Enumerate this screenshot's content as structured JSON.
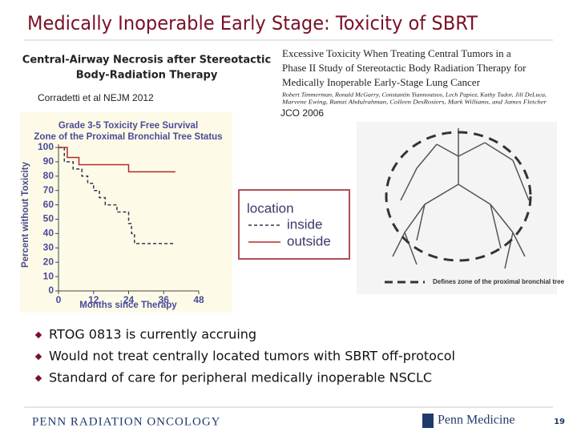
{
  "header": {
    "title": "Medically Inoperable Early Stage: Toxicity of SBRT"
  },
  "left_paper": {
    "title_lines": [
      "Central-Airway Necrosis after Stereotactic",
      "Body-Radiation Therapy"
    ],
    "citation": "Corradetti et al NEJM 2012"
  },
  "right_paper": {
    "title_lines": [
      "Excessive Toxicity When Treating Central Tumors in a",
      "Phase II Study of Stereotactic Body Radiation Therapy for",
      "Medically Inoperable Early-Stage Lung Cancer"
    ],
    "author_lines": [
      "Robert Timmerman, Ronald McGarry, Constantin Yiannoutsos, Lech Papiez, Kathy Tudor, Jill DeLuca,",
      "Marvene Ewing, Ramzi Abdulrahman, Colleen DesRosiers, Mark Williams, and James Fletcher"
    ],
    "citation": "JCO 2006",
    "figure_caption": "Defines zone of the proximal bronchial tree"
  },
  "chart_data": {
    "type": "line",
    "title_lines": [
      "Grade 3-5 Toxicity Free Survival",
      "Zone of the Proximal Bronchial Tree Status"
    ],
    "x_label": "Months since Therapy",
    "y_label": "Percent without Toxicity",
    "xlim": [
      0,
      48
    ],
    "ylim": [
      0,
      100
    ],
    "xticks": [
      0,
      12,
      24,
      36,
      48
    ],
    "yticks": [
      0,
      10,
      20,
      30,
      40,
      50,
      60,
      70,
      80,
      90,
      100
    ],
    "legend_title": "location",
    "series": [
      {
        "name": "inside",
        "color": "#2f3550",
        "dashed": true,
        "x": [
          0,
          2,
          2,
          5,
          5,
          8,
          8,
          10,
          10,
          12,
          12,
          14,
          14,
          16,
          16,
          20,
          20,
          24,
          24,
          25,
          25,
          26,
          26,
          40
        ],
        "values": [
          100,
          100,
          90,
          90,
          85,
          85,
          80,
          80,
          75,
          75,
          70,
          70,
          65,
          65,
          60,
          60,
          55,
          55,
          47,
          47,
          40,
          40,
          33,
          33
        ]
      },
      {
        "name": "outside",
        "color": "#b02a2a",
        "dashed": false,
        "x": [
          0,
          3,
          3,
          7,
          7,
          24,
          24,
          40
        ],
        "values": [
          100,
          100,
          93,
          93,
          88,
          88,
          83,
          83
        ]
      }
    ]
  },
  "bullets": [
    "RTOG 0813 is currently accruing",
    "Would not treat centrally located tumors with SBRT off-protocol",
    "Standard of care for peripheral medically inoperable NSCLC"
  ],
  "footer": {
    "left": "PENN RADIATION ONCOLOGY",
    "right": "Penn Medicine",
    "page": "19"
  }
}
